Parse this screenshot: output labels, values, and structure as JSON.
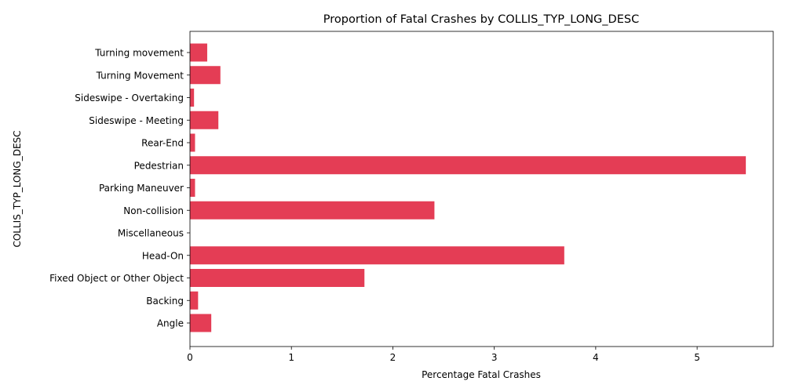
{
  "chart_data": {
    "type": "bar",
    "orientation": "horizontal",
    "title": "Proportion of Fatal Crashes by COLLIS_TYP_LONG_DESC",
    "xlabel": "Percentage Fatal Crashes",
    "ylabel": "COLLIS_TYP_LONG_DESC",
    "categories": [
      "Angle",
      "Backing",
      "Fixed Object or Other Object",
      "Head-On",
      "Miscellaneous",
      "Non-collision",
      "Parking Maneuver",
      "Pedestrian",
      "Rear-End",
      "Sideswipe - Meeting",
      "Sideswipe - Overtaking",
      "Turning Movement",
      "Turning movement"
    ],
    "values": [
      0.21,
      0.08,
      1.72,
      3.69,
      0.0,
      2.41,
      0.05,
      5.48,
      0.05,
      0.28,
      0.04,
      0.3,
      0.17
    ],
    "xlim": [
      0,
      5.75
    ],
    "xticks": [
      "0",
      "1",
      "2",
      "3",
      "4",
      "5"
    ],
    "bar_color": "#e43d55",
    "grid": false
  }
}
